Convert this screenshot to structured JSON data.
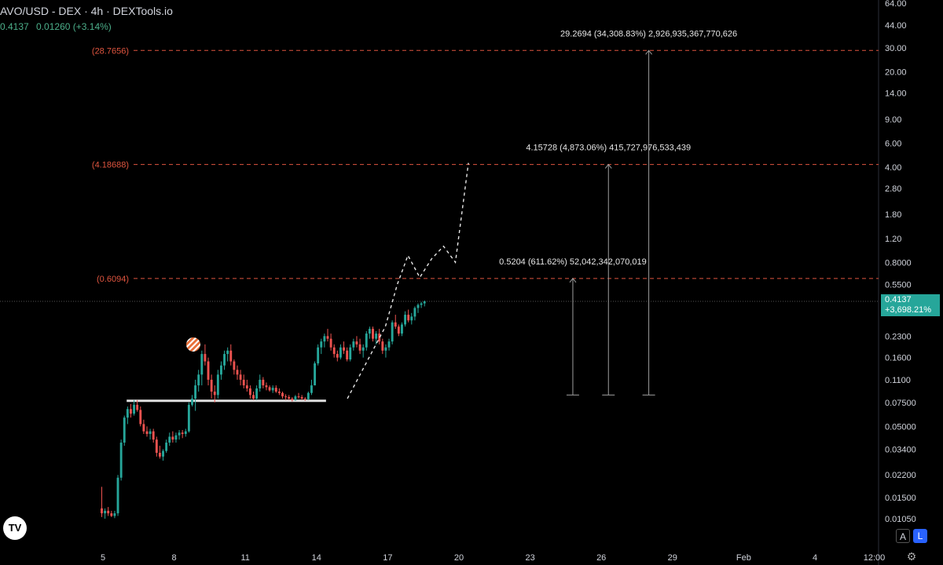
{
  "header": {
    "title": "AVO/USD - DEX · 4h · DEXTools.io",
    "price": "0.4137",
    "change": "0.01260 (+3.14%)"
  },
  "price_tag": {
    "price": "0.4137",
    "pct": "+3,698.21%"
  },
  "buttons": {
    "auto": "A",
    "log": "L"
  },
  "icons": {
    "logo": "TV",
    "settings": "⚙"
  },
  "colors": {
    "up": "#26a69a",
    "down": "#ef5350",
    "level": "#e0553f",
    "text": "#d1d4dc"
  },
  "chart_data": {
    "type": "candlestick",
    "title": "AVO/USD - DEX · 4h · DEXTools.io",
    "y_scale": "log",
    "y_ticks": [
      0.0105,
      0.015,
      0.022,
      0.034,
      0.05,
      0.075,
      0.11,
      0.16,
      0.23,
      0.55,
      0.8,
      1.2,
      1.8,
      2.8,
      4.0,
      6.0,
      9.0,
      14.0,
      20.0,
      30.0,
      44.0,
      64.0
    ],
    "y_tick_labels": [
      "0.01050",
      "0.01500",
      "0.02200",
      "0.03400",
      "0.05000",
      "0.07500",
      "0.1100",
      "0.1600",
      "0.2300",
      "0.5500",
      "0.8000",
      "1.20",
      "1.80",
      "2.80",
      "4.00",
      "6.00",
      "9.00",
      "14.00",
      "20.00",
      "30.00",
      "44.00",
      "64.00"
    ],
    "x_ticks": [
      {
        "label": "5",
        "d": 5
      },
      {
        "label": "8",
        "d": 8
      },
      {
        "label": "11",
        "d": 11
      },
      {
        "label": "14",
        "d": 14
      },
      {
        "label": "17",
        "d": 17
      },
      {
        "label": "20",
        "d": 20
      },
      {
        "label": "23",
        "d": 23
      },
      {
        "label": "26",
        "d": 26
      },
      {
        "label": "29",
        "d": 29
      },
      {
        "label": "Feb",
        "d": 32
      },
      {
        "label": "4",
        "d": 35
      },
      {
        "label": "12:00",
        "d": 37.5
      }
    ],
    "last_price": 0.4137,
    "levels": [
      {
        "label": "(28.7656)",
        "value": 28.7656
      },
      {
        "label": "(4.18688)",
        "value": 4.18688
      },
      {
        "label": "(0.6094)",
        "value": 0.6094
      }
    ],
    "targets": [
      {
        "d": 24.8,
        "from": 0.085,
        "to": 0.6094,
        "text": "0.5204 (611.62%) 52,042,342,070,019"
      },
      {
        "d": 26.3,
        "from": 0.085,
        "to": 4.18688,
        "text": "4.15728 (4,873.06%) 415,727,976,533,439"
      },
      {
        "d": 28.0,
        "from": 0.085,
        "to": 28.7656,
        "text": "29.2694 (34,308.83%) 2,926,935,367,770,626"
      }
    ],
    "support": {
      "from_d": 6.0,
      "to_d": 14.4,
      "value": 0.077
    },
    "projection": [
      {
        "d": 15.3,
        "v": 0.08
      },
      {
        "d": 16.9,
        "v": 0.27
      },
      {
        "d": 17.4,
        "v": 0.55
      },
      {
        "d": 17.85,
        "v": 0.9
      },
      {
        "d": 18.35,
        "v": 0.62
      },
      {
        "d": 18.85,
        "v": 0.85
      },
      {
        "d": 19.35,
        "v": 1.05
      },
      {
        "d": 19.85,
        "v": 0.8
      },
      {
        "d": 20.4,
        "v": 4.3
      }
    ],
    "candles": [
      [
        0.0125,
        0.018,
        0.0108,
        0.0115
      ],
      [
        0.0115,
        0.0125,
        0.0105,
        0.012
      ],
      [
        0.012,
        0.0128,
        0.011,
        0.0115
      ],
      [
        0.0115,
        0.012,
        0.0108,
        0.011
      ],
      [
        0.011,
        0.012,
        0.0106,
        0.0115
      ],
      [
        0.0115,
        0.022,
        0.011,
        0.021
      ],
      [
        0.021,
        0.04,
        0.02,
        0.038
      ],
      [
        0.038,
        0.06,
        0.036,
        0.058
      ],
      [
        0.058,
        0.07,
        0.052,
        0.067
      ],
      [
        0.067,
        0.073,
        0.058,
        0.062
      ],
      [
        0.062,
        0.078,
        0.06,
        0.072
      ],
      [
        0.072,
        0.078,
        0.064,
        0.066
      ],
      [
        0.066,
        0.07,
        0.05,
        0.052
      ],
      [
        0.052,
        0.056,
        0.044,
        0.046
      ],
      [
        0.046,
        0.05,
        0.042,
        0.044
      ],
      [
        0.044,
        0.048,
        0.04,
        0.046
      ],
      [
        0.046,
        0.048,
        0.038,
        0.04
      ],
      [
        0.04,
        0.042,
        0.03,
        0.032
      ],
      [
        0.032,
        0.036,
        0.029,
        0.03
      ],
      [
        0.03,
        0.034,
        0.028,
        0.033
      ],
      [
        0.033,
        0.04,
        0.032,
        0.038
      ],
      [
        0.038,
        0.045,
        0.036,
        0.042
      ],
      [
        0.042,
        0.046,
        0.038,
        0.04
      ],
      [
        0.04,
        0.045,
        0.038,
        0.043
      ],
      [
        0.043,
        0.047,
        0.04,
        0.045
      ],
      [
        0.045,
        0.047,
        0.041,
        0.044
      ],
      [
        0.044,
        0.048,
        0.042,
        0.046
      ],
      [
        0.046,
        0.075,
        0.045,
        0.072
      ],
      [
        0.072,
        0.085,
        0.07,
        0.08
      ],
      [
        0.08,
        0.11,
        0.065,
        0.1
      ],
      [
        0.1,
        0.13,
        0.09,
        0.12
      ],
      [
        0.12,
        0.18,
        0.1,
        0.17
      ],
      [
        0.17,
        0.2,
        0.14,
        0.15
      ],
      [
        0.15,
        0.16,
        0.1,
        0.11
      ],
      [
        0.11,
        0.12,
        0.08,
        0.09
      ],
      [
        0.09,
        0.1,
        0.075,
        0.085
      ],
      [
        0.085,
        0.13,
        0.08,
        0.12
      ],
      [
        0.12,
        0.15,
        0.11,
        0.14
      ],
      [
        0.14,
        0.18,
        0.13,
        0.17
      ],
      [
        0.17,
        0.19,
        0.15,
        0.18
      ],
      [
        0.18,
        0.2,
        0.14,
        0.15
      ],
      [
        0.15,
        0.155,
        0.12,
        0.13
      ],
      [
        0.13,
        0.14,
        0.11,
        0.12
      ],
      [
        0.12,
        0.13,
        0.1,
        0.11
      ],
      [
        0.11,
        0.12,
        0.095,
        0.1
      ],
      [
        0.1,
        0.11,
        0.09,
        0.095
      ],
      [
        0.095,
        0.1,
        0.08,
        0.085
      ],
      [
        0.085,
        0.09,
        0.078,
        0.08
      ],
      [
        0.08,
        0.1,
        0.078,
        0.095
      ],
      [
        0.095,
        0.12,
        0.09,
        0.11
      ],
      [
        0.11,
        0.115,
        0.095,
        0.1
      ],
      [
        0.1,
        0.105,
        0.092,
        0.097
      ],
      [
        0.097,
        0.1,
        0.09,
        0.092
      ],
      [
        0.092,
        0.1,
        0.088,
        0.096
      ],
      [
        0.096,
        0.1,
        0.088,
        0.09
      ],
      [
        0.09,
        0.095,
        0.085,
        0.088
      ],
      [
        0.088,
        0.09,
        0.08,
        0.083
      ],
      [
        0.083,
        0.086,
        0.078,
        0.082
      ],
      [
        0.082,
        0.085,
        0.078,
        0.08
      ],
      [
        0.08,
        0.082,
        0.076,
        0.078
      ],
      [
        0.078,
        0.085,
        0.077,
        0.083
      ],
      [
        0.083,
        0.088,
        0.08,
        0.082
      ],
      [
        0.082,
        0.085,
        0.078,
        0.08
      ],
      [
        0.08,
        0.082,
        0.077,
        0.079
      ],
      [
        0.079,
        0.09,
        0.078,
        0.088
      ],
      [
        0.088,
        0.11,
        0.085,
        0.1
      ],
      [
        0.1,
        0.15,
        0.1,
        0.145
      ],
      [
        0.145,
        0.2,
        0.14,
        0.19
      ],
      [
        0.19,
        0.22,
        0.17,
        0.21
      ],
      [
        0.21,
        0.24,
        0.19,
        0.23
      ],
      [
        0.23,
        0.26,
        0.21,
        0.22
      ],
      [
        0.22,
        0.24,
        0.18,
        0.19
      ],
      [
        0.19,
        0.2,
        0.16,
        0.17
      ],
      [
        0.17,
        0.18,
        0.15,
        0.16
      ],
      [
        0.16,
        0.2,
        0.155,
        0.19
      ],
      [
        0.19,
        0.21,
        0.17,
        0.18
      ],
      [
        0.18,
        0.19,
        0.15,
        0.155
      ],
      [
        0.155,
        0.2,
        0.15,
        0.19
      ],
      [
        0.19,
        0.22,
        0.18,
        0.21
      ],
      [
        0.21,
        0.23,
        0.19,
        0.2
      ],
      [
        0.2,
        0.22,
        0.17,
        0.18
      ],
      [
        0.18,
        0.2,
        0.16,
        0.19
      ],
      [
        0.19,
        0.25,
        0.18,
        0.24
      ],
      [
        0.24,
        0.27,
        0.22,
        0.26
      ],
      [
        0.26,
        0.27,
        0.21,
        0.22
      ],
      [
        0.22,
        0.25,
        0.2,
        0.24
      ],
      [
        0.24,
        0.26,
        0.2,
        0.21
      ],
      [
        0.21,
        0.22,
        0.17,
        0.18
      ],
      [
        0.18,
        0.2,
        0.16,
        0.19
      ],
      [
        0.19,
        0.22,
        0.18,
        0.21
      ],
      [
        0.21,
        0.3,
        0.2,
        0.29
      ],
      [
        0.29,
        0.33,
        0.26,
        0.27
      ],
      [
        0.27,
        0.28,
        0.23,
        0.24
      ],
      [
        0.24,
        0.29,
        0.23,
        0.28
      ],
      [
        0.28,
        0.35,
        0.27,
        0.33
      ],
      [
        0.33,
        0.36,
        0.29,
        0.3
      ],
      [
        0.3,
        0.34,
        0.28,
        0.32
      ],
      [
        0.32,
        0.38,
        0.3,
        0.37
      ],
      [
        0.37,
        0.4,
        0.34,
        0.39
      ],
      [
        0.39,
        0.41,
        0.37,
        0.4
      ],
      [
        0.4,
        0.42,
        0.38,
        0.4137
      ]
    ]
  }
}
